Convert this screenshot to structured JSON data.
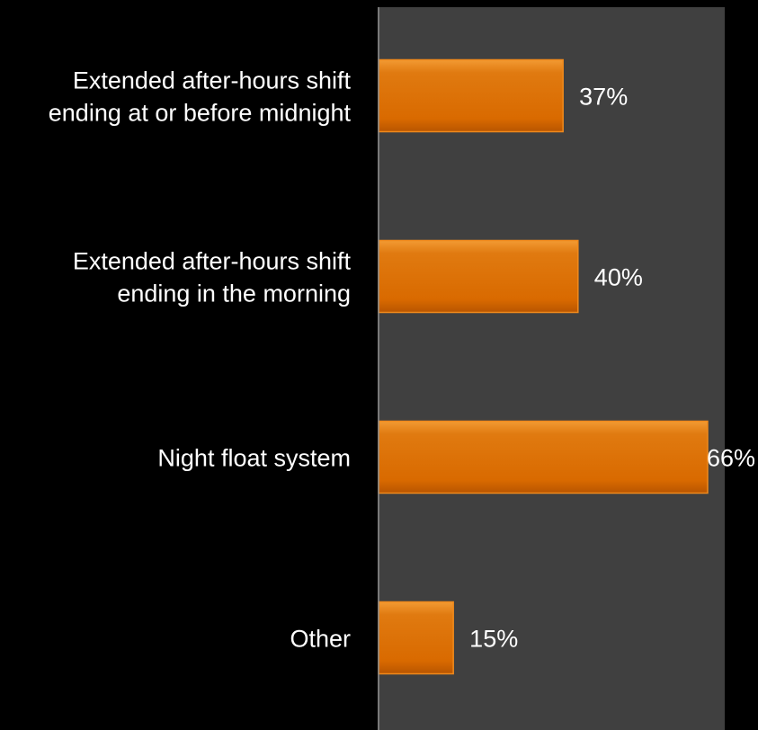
{
  "chart_data": {
    "type": "bar",
    "orientation": "horizontal",
    "categories": [
      [
        "Extended after-hours shift",
        "ending at or before midnight"
      ],
      [
        "Extended after-hours shift",
        "ending in the morning"
      ],
      [
        "Night float system"
      ],
      [
        "Other"
      ]
    ],
    "values": [
      37,
      40,
      66,
      15
    ],
    "value_labels": [
      "37%",
      "40%",
      "66%",
      "15%"
    ],
    "xlim": [
      0,
      70
    ],
    "grid": false,
    "legend": "none",
    "colors": {
      "page_background": "#000000",
      "plot_background": "#404040",
      "bar": "#d96a00",
      "bar_edge": "#f08a1c",
      "axis_line": "#8c8c8c",
      "text": "#ffffff"
    }
  }
}
